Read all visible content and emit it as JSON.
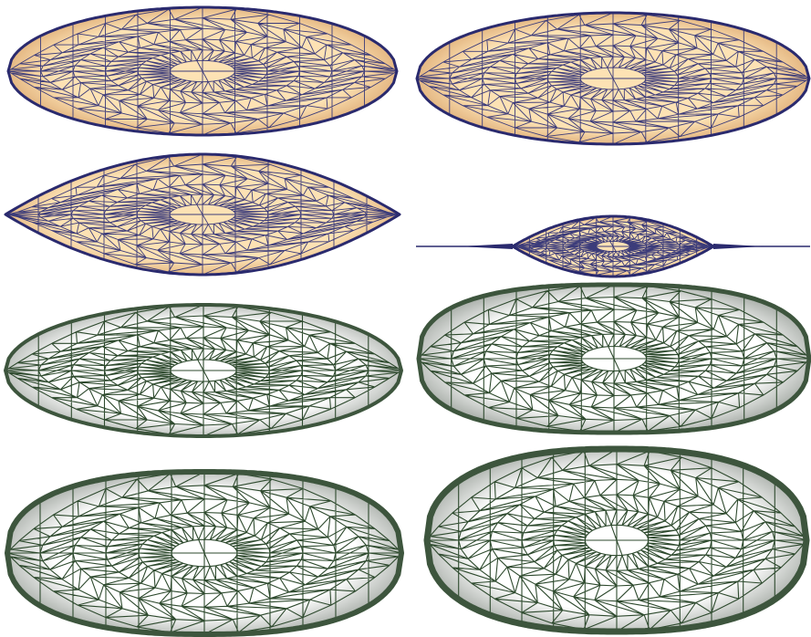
{
  "figure": {
    "panels": [
      {
        "id": "tan-1",
        "shape": "ellipsoid",
        "style": "tan",
        "sharpness": 0.0
      },
      {
        "id": "tan-2",
        "shape": "ellipsoid",
        "style": "tan",
        "sharpness": 0.0
      },
      {
        "id": "tan-3",
        "shape": "spindle",
        "style": "tan",
        "sharpness": 1.0
      },
      {
        "id": "tan-4",
        "shape": "spindle-with-tails",
        "style": "tan",
        "sharpness": 1.0
      },
      {
        "id": "gray-1",
        "shape": "ellipsoid",
        "style": "gray",
        "sharpness": 0.0
      },
      {
        "id": "gray-2",
        "shape": "rounded-ellipsoid",
        "style": "gray",
        "sharpness": 0.0
      },
      {
        "id": "gray-3",
        "shape": "rounded-ellipsoid",
        "style": "gray",
        "sharpness": 0.0
      },
      {
        "id": "gray-4",
        "shape": "rounded-ellipsoid",
        "style": "gray",
        "sharpness": 0.0
      }
    ],
    "styles": {
      "tan": {
        "fill_center": "#fde2b4",
        "fill_edge": "#d9a56e",
        "line": "#3c3c7a",
        "outline": "#2a2a6e"
      },
      "gray": {
        "fill_center": "#ffffff",
        "fill_edge": "#a3a9a3",
        "line": "#2e4a2e",
        "outline": "#3d553d"
      }
    }
  }
}
